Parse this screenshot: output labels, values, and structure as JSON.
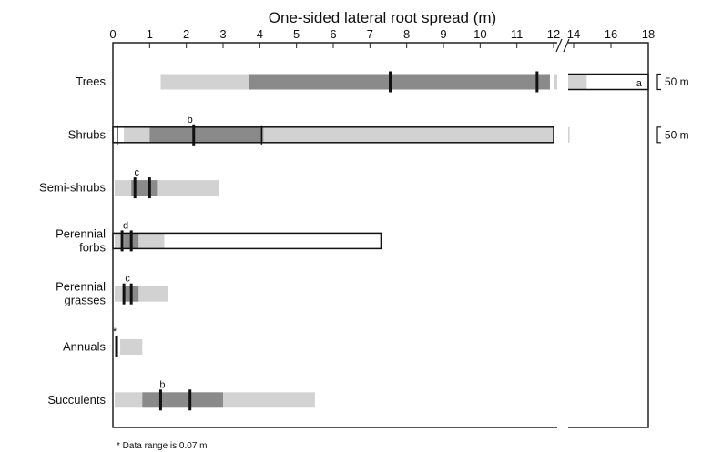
{
  "chart_data": {
    "type": "bar",
    "title": "One-sided lateral root spread (m)",
    "x_ticks": [
      "0",
      "1",
      "2",
      "3",
      "4",
      "5",
      "6",
      "7",
      "8",
      "9",
      "10",
      "11",
      "12",
      "14",
      "16",
      "18"
    ],
    "xlim": [
      0,
      18
    ],
    "axis_break": [
      12,
      14
    ],
    "footnote": "* Data range is 0.07 m",
    "colors": {
      "light": "#d2d2d2",
      "dark": "#8a8a8a",
      "line": "#111111",
      "frame": "#222222"
    },
    "categories": [
      {
        "label_lines": [
          "Trees"
        ],
        "light": [
          [
            1.3,
            3.7
          ],
          [
            12.0,
            12.6
          ],
          [
            13.0,
            14.7
          ]
        ],
        "dark": [
          [
            3.7,
            11.9
          ]
        ],
        "range_outline": [
          13.0,
          18.0
        ],
        "marks": [
          7.55,
          11.55
        ],
        "thin_marks": [],
        "outline": null,
        "letter": "a",
        "letter_at": 17.5,
        "value_label": "50 m"
      },
      {
        "label_lines": [
          "Shrubs"
        ],
        "light": [
          [
            0.3,
            1.0
          ],
          [
            4.1,
            12.0
          ],
          [
            13.0,
            13.6
          ]
        ],
        "dark": [
          [
            1.0,
            4.1
          ]
        ],
        "range_outline": null,
        "marks": [
          2.2
        ],
        "thin_marks": [
          0.12,
          4.05
        ],
        "outline": [
          0.0,
          12.0
        ],
        "letter": "b",
        "letter_at": 2.1,
        "value_label": "50 m"
      },
      {
        "label_lines": [
          "Semi-shrubs"
        ],
        "light": [
          [
            0.05,
            0.5
          ],
          [
            1.2,
            2.9
          ]
        ],
        "dark": [
          [
            0.5,
            1.2
          ]
        ],
        "range_outline": null,
        "marks": [
          0.6,
          1.0
        ],
        "thin_marks": [],
        "outline": null,
        "letter": "c",
        "letter_at": 0.65,
        "value_label": ""
      },
      {
        "label_lines": [
          "Perennial",
          "forbs"
        ],
        "light": [
          [
            0.05,
            0.3
          ],
          [
            0.7,
            1.4
          ]
        ],
        "dark": [
          [
            0.3,
            0.7
          ]
        ],
        "range_outline": null,
        "marks": [
          0.25,
          0.5
        ],
        "thin_marks": [],
        "outline": [
          0.0,
          7.3
        ],
        "letter": "d",
        "letter_at": 0.35,
        "value_label": ""
      },
      {
        "label_lines": [
          "Perennial",
          "grasses"
        ],
        "light": [
          [
            0.05,
            0.3
          ],
          [
            0.7,
            1.5
          ]
        ],
        "dark": [
          [
            0.3,
            0.7
          ]
        ],
        "range_outline": null,
        "marks": [
          0.3,
          0.5
        ],
        "thin_marks": [],
        "outline": null,
        "letter": "c",
        "letter_at": 0.4,
        "value_label": ""
      },
      {
        "label_lines": [
          "Annuals"
        ],
        "light": [
          [
            0.2,
            0.8
          ]
        ],
        "dark": [],
        "range_outline": null,
        "marks": [
          0.1
        ],
        "thin_marks": [],
        "outline": null,
        "letter": "*",
        "letter_at": 0.05,
        "value_label": ""
      },
      {
        "label_lines": [
          "Succulents"
        ],
        "light": [
          [
            0.05,
            0.8
          ],
          [
            3.0,
            5.5
          ]
        ],
        "dark": [
          [
            0.8,
            3.0
          ]
        ],
        "range_outline": null,
        "marks": [
          1.3,
          2.1
        ],
        "thin_marks": [],
        "outline": null,
        "letter": "b",
        "letter_at": 1.35,
        "value_label": ""
      }
    ]
  }
}
